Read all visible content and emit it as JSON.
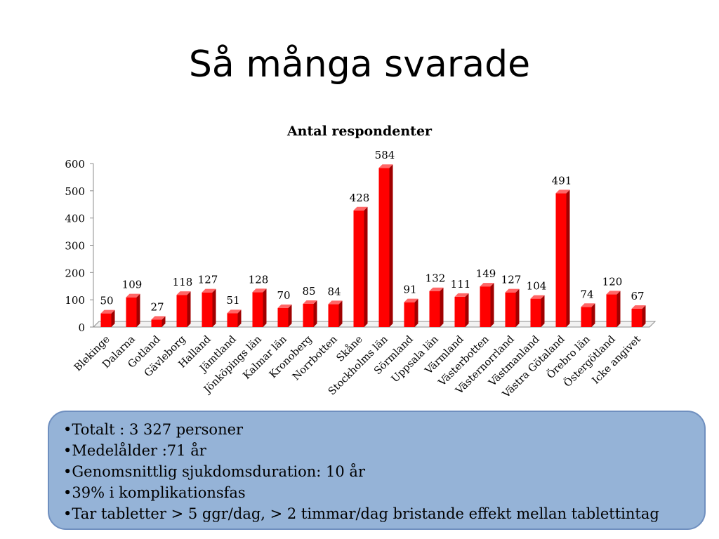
{
  "slide": {
    "title": "Så många svarade"
  },
  "chart_data": {
    "type": "bar",
    "title": "Antal respondenter",
    "xlabel": "",
    "ylabel": "",
    "ylim": [
      0,
      600
    ],
    "yticks": [
      0,
      100,
      200,
      300,
      400,
      500,
      600
    ],
    "grid": false,
    "legend": "none",
    "bar_color": "#ff0000",
    "categories": [
      "Blekinge",
      "Dalarna",
      "Gotland",
      "Gävleborg",
      "Halland",
      "Jämtland",
      "Jönköpings län",
      "Kalmar län",
      "Kronoberg",
      "Norrbotten",
      "Skåne",
      "Stockholms län",
      "Sörmland",
      "Uppsala län",
      "Värmland",
      "Västerbotten",
      "Västernorrland",
      "Västmanland",
      "Västra Götaland",
      "Örebro län",
      "Östergötland",
      "Icke angivet"
    ],
    "values": [
      50,
      109,
      27,
      118,
      127,
      51,
      128,
      70,
      85,
      84,
      428,
      584,
      91,
      132,
      111,
      149,
      127,
      104,
      491,
      74,
      120,
      67
    ]
  },
  "summary": {
    "items": [
      "Totalt : 3 327 personer",
      "Medelålder :71 år",
      "Genomsnittlig sjukdomsduration: 10 år",
      "39% i komplikationsfas",
      "Tar tabletter > 5 ggr/dag, > 2 timmar/dag bristande effekt mellan tablettintag"
    ]
  }
}
